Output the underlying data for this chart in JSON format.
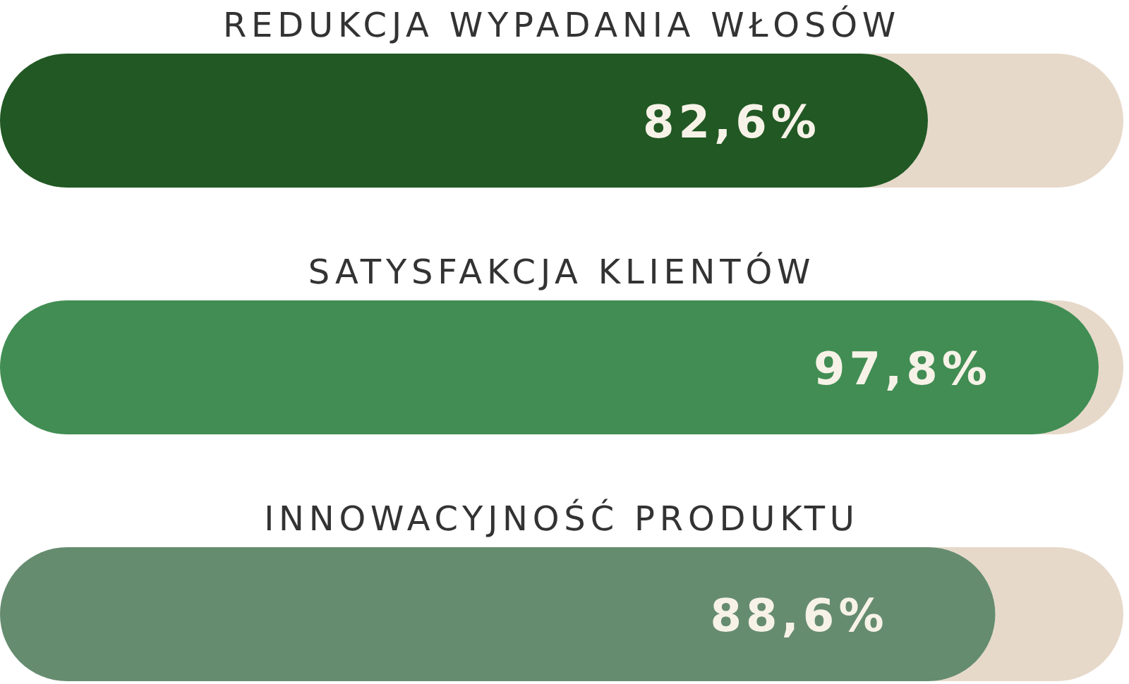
{
  "chart_data": {
    "type": "bar",
    "orientation": "horizontal",
    "categories": [
      "REDUKCJA WYPADANIA WŁOSÓW",
      "SATYSFAKCJA KLIENTÓW",
      "INNOWACYJNOŚĆ PRODUKTU"
    ],
    "values": [
      82.6,
      97.8,
      88.6
    ],
    "colors": [
      "#215823",
      "#418d53",
      "#668c6f"
    ],
    "value_labels": [
      "82,6%",
      "97,8%",
      "88,6%"
    ],
    "xlim": [
      0,
      100
    ]
  }
}
